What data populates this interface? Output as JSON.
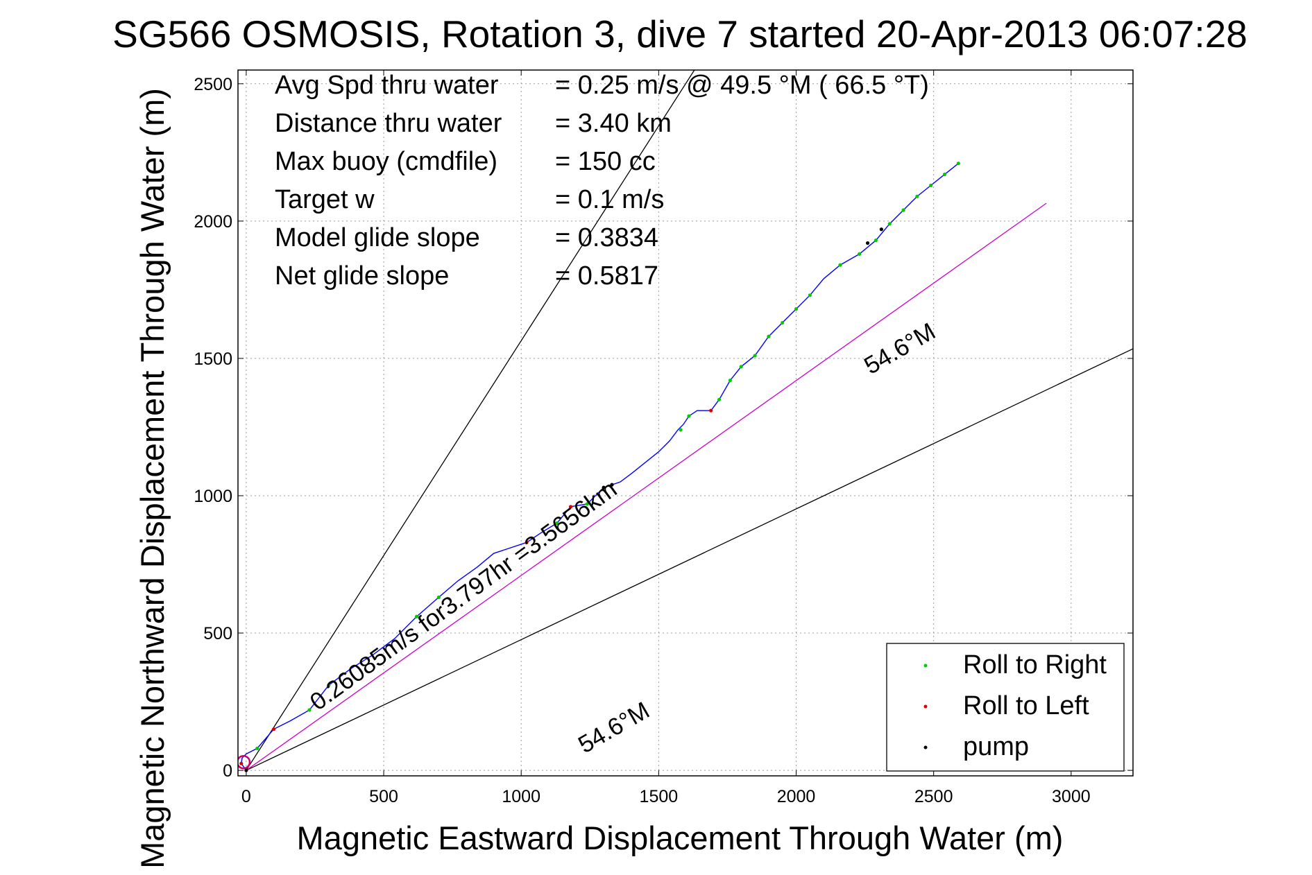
{
  "chart_data": {
    "type": "line",
    "title": "SG566 OSMOSIS, Rotation 3, dive 7 started 20-Apr-2013 06:07:28",
    "xlabel": "Magnetic Eastward Displacement Through Water (m)",
    "ylabel": "Magnetic Northward Displacement Through Water (m)",
    "xlim": [
      -30,
      3225
    ],
    "ylim": [
      -20,
      2550
    ],
    "xticks": [
      0,
      500,
      1000,
      1500,
      2000,
      2500,
      3000
    ],
    "yticks": [
      0,
      500,
      1000,
      1500,
      2000,
      2500
    ],
    "xtick_labels": [
      "0",
      "500",
      "1000",
      "1500",
      "2000",
      "2500",
      "3000"
    ],
    "ytick_labels": [
      "0",
      "500",
      "1000",
      "1500",
      "2000",
      "2500"
    ],
    "grid": true,
    "info_lines": [
      {
        "label": "Avg Spd thru water",
        "value": "=  0.25 m/s @  49.5 °M ( 66.5 °T)"
      },
      {
        "label": "Distance thru water",
        "value": "=  3.40 km"
      },
      {
        "label": "Max buoy (cmdfile)",
        "value": "= 150 cc"
      },
      {
        "label": "Target w",
        "value": "= 0.1 m/s"
      },
      {
        "label": "Model glide slope",
        "value": "= 0.3834"
      },
      {
        "label": "Net glide slope",
        "value": "= 0.5817"
      }
    ],
    "annotations": [
      {
        "text": "54.6°M",
        "x": 1230,
        "y": 60,
        "angle": -30
      },
      {
        "text": "54.6°M",
        "x": 2270,
        "y": 1440,
        "angle": -30
      },
      {
        "text": "0.26085m/s for3.797hr =3.5656km",
        "x": 260,
        "y": 215,
        "angle": -36
      }
    ],
    "lines": [
      {
        "name": "",
        "color": "#000000",
        "x": [
          0,
          1630
        ],
        "y": [
          0,
          2550
        ]
      },
      {
        "name": "",
        "color": "#000000",
        "x": [
          0,
          3225
        ],
        "y": [
          0,
          1535
        ]
      },
      {
        "name": "",
        "color": "#cc00cc",
        "x": [
          0,
          2910
        ],
        "y": [
          0,
          2065
        ]
      }
    ],
    "track": {
      "color": "#0000ff",
      "x": [
        0,
        -18,
        -15,
        0,
        40,
        100,
        160,
        230,
        300,
        380,
        460,
        540,
        620,
        700,
        770,
        840,
        900,
        960,
        1020,
        1080,
        1130,
        1180,
        1240,
        1270,
        1300,
        1330,
        1360,
        1400,
        1450,
        1500,
        1540,
        1570,
        1590,
        1610,
        1640,
        1670,
        1690,
        1720,
        1760,
        1800,
        1850,
        1900,
        1950,
        2000,
        2050,
        2100,
        2160,
        2230,
        2290,
        2340,
        2390,
        2440,
        2490,
        2540,
        2590
      ],
      "y": [
        0,
        25,
        45,
        60,
        80,
        150,
        180,
        220,
        310,
        370,
        420,
        480,
        560,
        630,
        690,
        740,
        790,
        810,
        830,
        870,
        900,
        960,
        970,
        1000,
        1030,
        1040,
        1050,
        1080,
        1120,
        1160,
        1200,
        1240,
        1260,
        1290,
        1310,
        1310,
        1310,
        1350,
        1420,
        1470,
        1510,
        1580,
        1630,
        1680,
        1730,
        1790,
        1840,
        1880,
        1930,
        1990,
        2040,
        2090,
        2130,
        2170,
        2210
      ]
    },
    "series": [
      {
        "name": "Roll to Right",
        "color": "#00cc00",
        "x": [
          40,
          230,
          300,
          620,
          700,
          1130,
          1240,
          1580,
          1610,
          1720,
          1760,
          1800,
          1850,
          1900,
          1950,
          2000,
          2050,
          2160,
          2230,
          2290,
          2340,
          2390,
          2440,
          2490,
          2540,
          2590
        ],
        "y": [
          80,
          220,
          310,
          560,
          630,
          900,
          970,
          1240,
          1290,
          1350,
          1420,
          1470,
          1510,
          1580,
          1630,
          1680,
          1730,
          1840,
          1880,
          1930,
          1990,
          2040,
          2090,
          2130,
          2170,
          2210
        ]
      },
      {
        "name": "Roll to Left",
        "color": "#dd0000",
        "x": [
          -18,
          100,
          1020,
          1180,
          1690
        ],
        "y": [
          25,
          150,
          830,
          960,
          1310
        ]
      },
      {
        "name": "pump",
        "color": "#000000",
        "x": [
          0,
          1300,
          1330,
          2260,
          2310
        ],
        "y": [
          0,
          1030,
          1040,
          1920,
          1970
        ]
      }
    ],
    "legend": {
      "position": "bottom-right",
      "entries": [
        {
          "label": "Roll to Right",
          "color": "#00cc00"
        },
        {
          "label": "Roll to Left",
          "color": "#dd0000"
        },
        {
          "label": "pump",
          "color": "#000000"
        }
      ]
    }
  }
}
